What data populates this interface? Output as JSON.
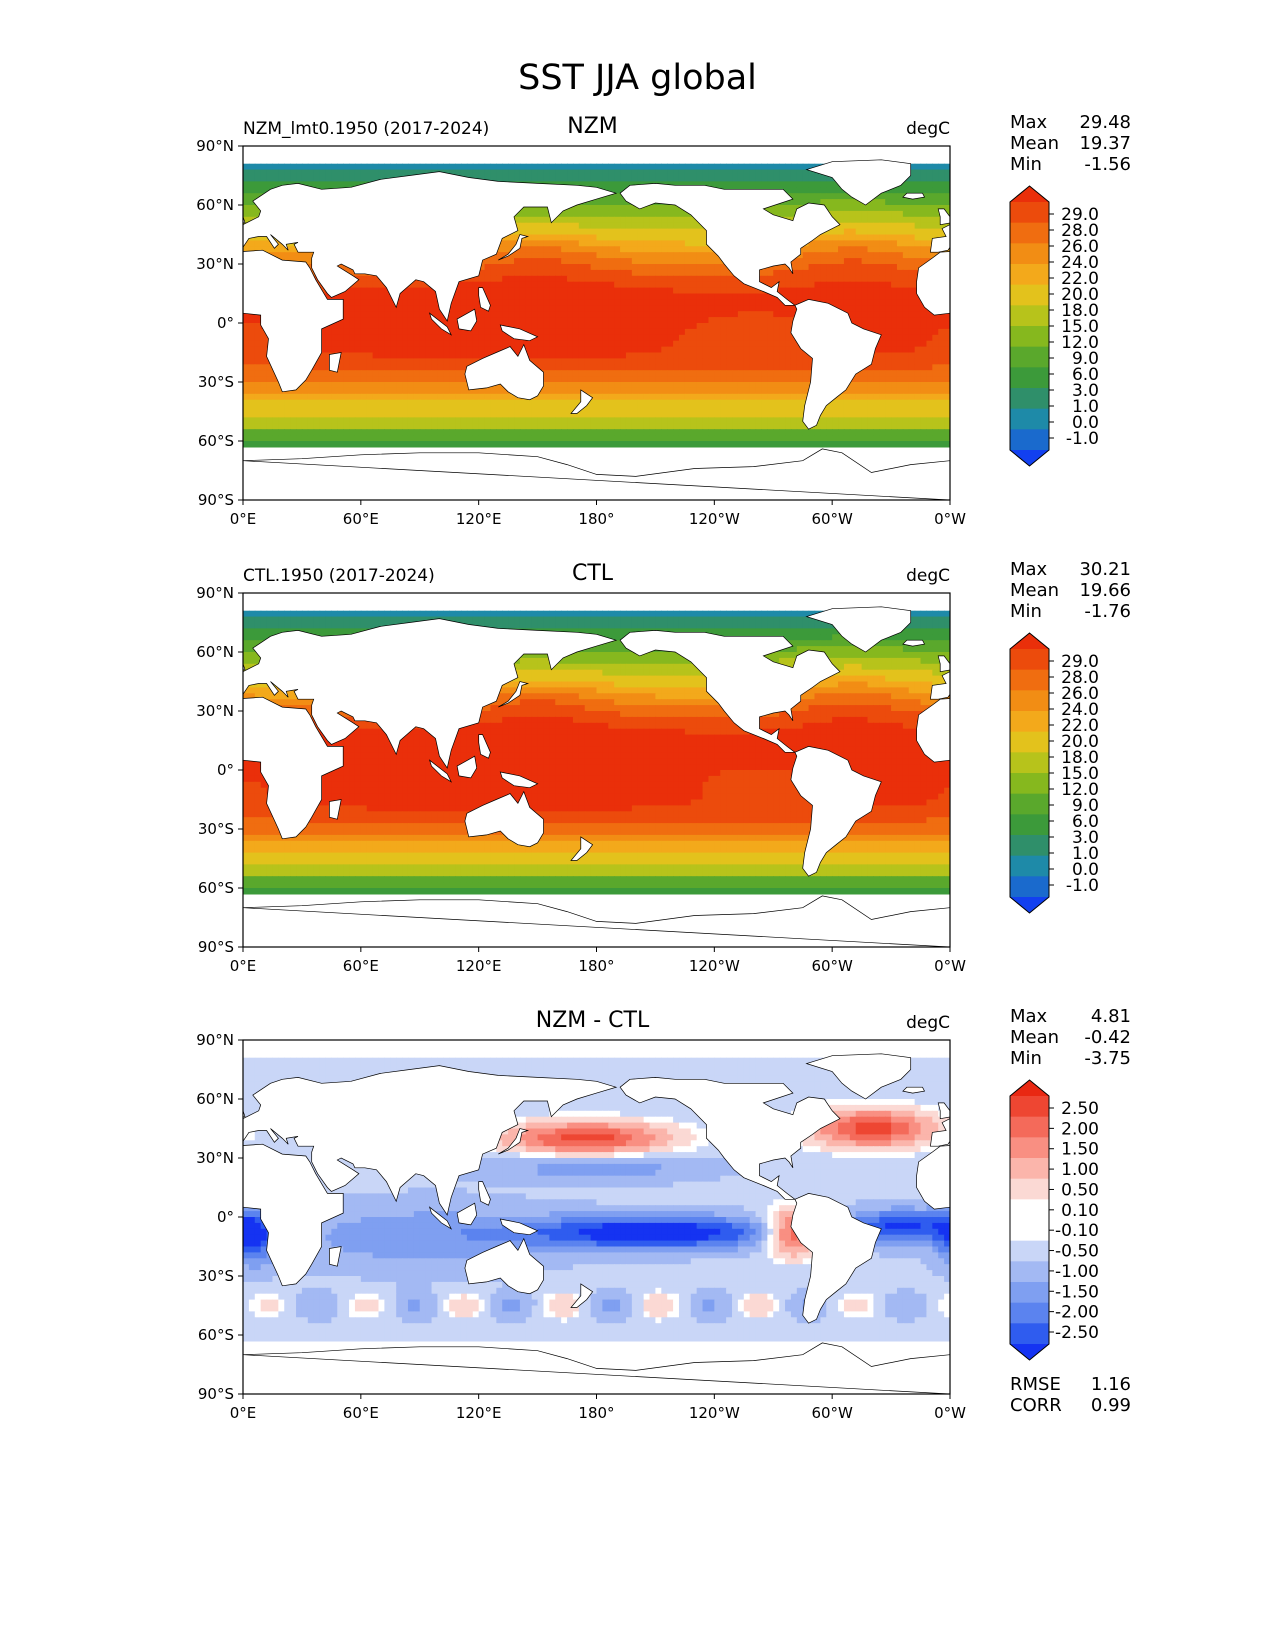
{
  "title": "SST JJA global",
  "colors": {
    "land": "#ffffff",
    "coast": "#000000",
    "abs_levels": [
      "#1240f0",
      "#1a6acd",
      "#1e8aa8",
      "#2f8f6a",
      "#3c9a3a",
      "#5aa82c",
      "#86b81e",
      "#b7c31b",
      "#e3c21c",
      "#f3a91b",
      "#f28d14",
      "#f06d10",
      "#ec4b0c",
      "#ea2f0a"
    ],
    "diff_levels": [
      "#1533f2",
      "#2f5cef",
      "#5b83ef",
      "#7f9ff1",
      "#a3b9f3",
      "#c9d6f7",
      "#ffffff",
      "#ffffff",
      "#fbd9d4",
      "#fbb5ab",
      "#f98f82",
      "#f46a5a",
      "#ee4632",
      "#e92812"
    ]
  },
  "chart_data": [
    {
      "type": "heatmap",
      "name": "panel-nzm",
      "left_label": "NZM_lmt0.1950 (2017-2024)",
      "center_title": "NZM",
      "units": "degC",
      "x_ticks": [
        "0°E",
        "60°E",
        "120°E",
        "180°",
        "120°W",
        "60°W",
        "0°W"
      ],
      "y_ticks": [
        "90°N",
        "60°N",
        "30°N",
        "0°",
        "30°S",
        "60°S",
        "90°S"
      ],
      "xlim": [
        0,
        360
      ],
      "ylim": [
        -90,
        90
      ],
      "stats": [
        {
          "label": "Max",
          "value": "29.48"
        },
        {
          "label": "Mean",
          "value": "19.37"
        },
        {
          "label": "Min",
          "value": "-1.56"
        }
      ],
      "colorbar": {
        "extend": "both",
        "labels": [
          "29.0",
          "28.0",
          "26.0",
          "24.0",
          "22.0",
          "20.0",
          "18.0",
          "15.0",
          "12.0",
          "9.0",
          "6.0",
          "3.0",
          "1.0",
          "0.0",
          "-1.0"
        ]
      },
      "field": "abs",
      "field_scale": 1.0,
      "footer": []
    },
    {
      "type": "heatmap",
      "name": "panel-ctl",
      "left_label": "CTL.1950 (2017-2024)",
      "center_title": "CTL",
      "units": "degC",
      "x_ticks": [
        "0°E",
        "60°E",
        "120°E",
        "180°",
        "120°W",
        "60°W",
        "0°W"
      ],
      "y_ticks": [
        "90°N",
        "60°N",
        "30°N",
        "0°",
        "30°S",
        "60°S",
        "90°S"
      ],
      "xlim": [
        0,
        360
      ],
      "ylim": [
        -90,
        90
      ],
      "stats": [
        {
          "label": "Max",
          "value": "30.21"
        },
        {
          "label": "Mean",
          "value": "19.66"
        },
        {
          "label": "Min",
          "value": "-1.76"
        }
      ],
      "colorbar": {
        "extend": "both",
        "labels": [
          "29.0",
          "28.0",
          "26.0",
          "24.0",
          "22.0",
          "20.0",
          "18.0",
          "15.0",
          "12.0",
          "9.0",
          "6.0",
          "3.0",
          "1.0",
          "0.0",
          "-1.0"
        ]
      },
      "field": "abs",
      "field_scale": 1.03,
      "footer": []
    },
    {
      "type": "heatmap",
      "name": "panel-diff",
      "left_label": "",
      "center_title": "NZM - CTL",
      "units": "degC",
      "x_ticks": [
        "0°E",
        "60°E",
        "120°E",
        "180°",
        "120°W",
        "60°W",
        "0°W"
      ],
      "y_ticks": [
        "90°N",
        "60°N",
        "30°N",
        "0°",
        "30°S",
        "60°S",
        "90°S"
      ],
      "xlim": [
        0,
        360
      ],
      "ylim": [
        -90,
        90
      ],
      "stats": [
        {
          "label": "Max",
          "value": "4.81"
        },
        {
          "label": "Mean",
          "value": "-0.42"
        },
        {
          "label": "Min",
          "value": "-3.75"
        }
      ],
      "colorbar": {
        "extend": "both",
        "labels": [
          "2.50",
          "2.00",
          "1.50",
          "1.00",
          "0.50",
          "0.10",
          "-0.10",
          "-0.50",
          "-1.00",
          "-1.50",
          "-2.00",
          "-2.50"
        ]
      },
      "field": "diff",
      "field_scale": 1.0,
      "footer": [
        {
          "label": "RMSE",
          "value": "1.16"
        },
        {
          "label": "CORR",
          "value": "0.99"
        }
      ]
    }
  ]
}
